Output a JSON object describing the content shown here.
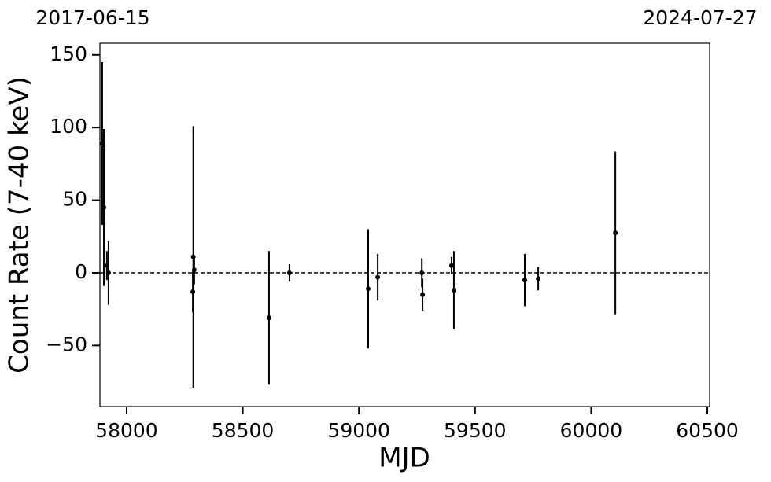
{
  "chart_data": {
    "type": "errorbar",
    "x_label": "MJD",
    "y_label": "Count Rate (7-40 keV)",
    "start_date": "2017-06-15",
    "end_date": "2024-07-27",
    "x": [
      57895,
      57902,
      57915,
      57922,
      58285,
      58287,
      58291,
      58613,
      58701,
      59040,
      59081,
      59271,
      59274,
      59399,
      59409,
      59714,
      59772,
      60104
    ],
    "y": [
      89,
      45,
      5,
      0,
      -13,
      11,
      2,
      -31,
      0,
      -11,
      -3,
      0,
      -15,
      5,
      -12,
      -5,
      -4,
      27.5
    ],
    "yerr": [
      56,
      54,
      10,
      22,
      14,
      90,
      10,
      46,
      6,
      41,
      16,
      10,
      11,
      6,
      27,
      18,
      8,
      56
    ],
    "color": "#000000",
    "hline": 0,
    "xlim": [
      57885,
      60510
    ],
    "ylim": [
      -92,
      158
    ],
    "xticks": [
      58000,
      58500,
      59000,
      59500,
      60000,
      60500
    ],
    "yticks": [
      {
        "value": -50,
        "label": "−50"
      },
      0,
      50,
      100,
      150
    ]
  }
}
